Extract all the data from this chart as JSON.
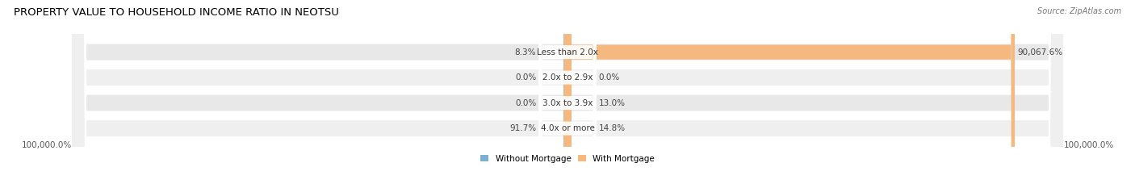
{
  "title": "PROPERTY VALUE TO HOUSEHOLD INCOME RATIO IN NEOTSU",
  "source": "Source: ZipAtlas.com",
  "categories": [
    "Less than 2.0x",
    "2.0x to 2.9x",
    "3.0x to 3.9x",
    "4.0x or more"
  ],
  "without_mortgage_raw": [
    8.3,
    0.0,
    0.0,
    91.7
  ],
  "with_mortgage_raw": [
    90067.6,
    0.0,
    13.0,
    14.8
  ],
  "without_mortgage_pct_label": [
    "8.3%",
    "0.0%",
    "0.0%",
    "91.7%"
  ],
  "with_mortgage_pct_label": [
    "90,067.6%",
    "0.0%",
    "13.0%",
    "14.8%"
  ],
  "color_without": "#7bafd4",
  "color_with": "#f5b97f",
  "background_row_odd": "#e8e8e8",
  "background_row_even": "#efefef",
  "x_min_label": "100,000.0%",
  "x_max_label": "100,000.0%",
  "bar_height": 0.58,
  "max_value": 100000.0,
  "title_fontsize": 9.5,
  "source_fontsize": 7,
  "label_fontsize": 7.5,
  "axis_fontsize": 7.5
}
